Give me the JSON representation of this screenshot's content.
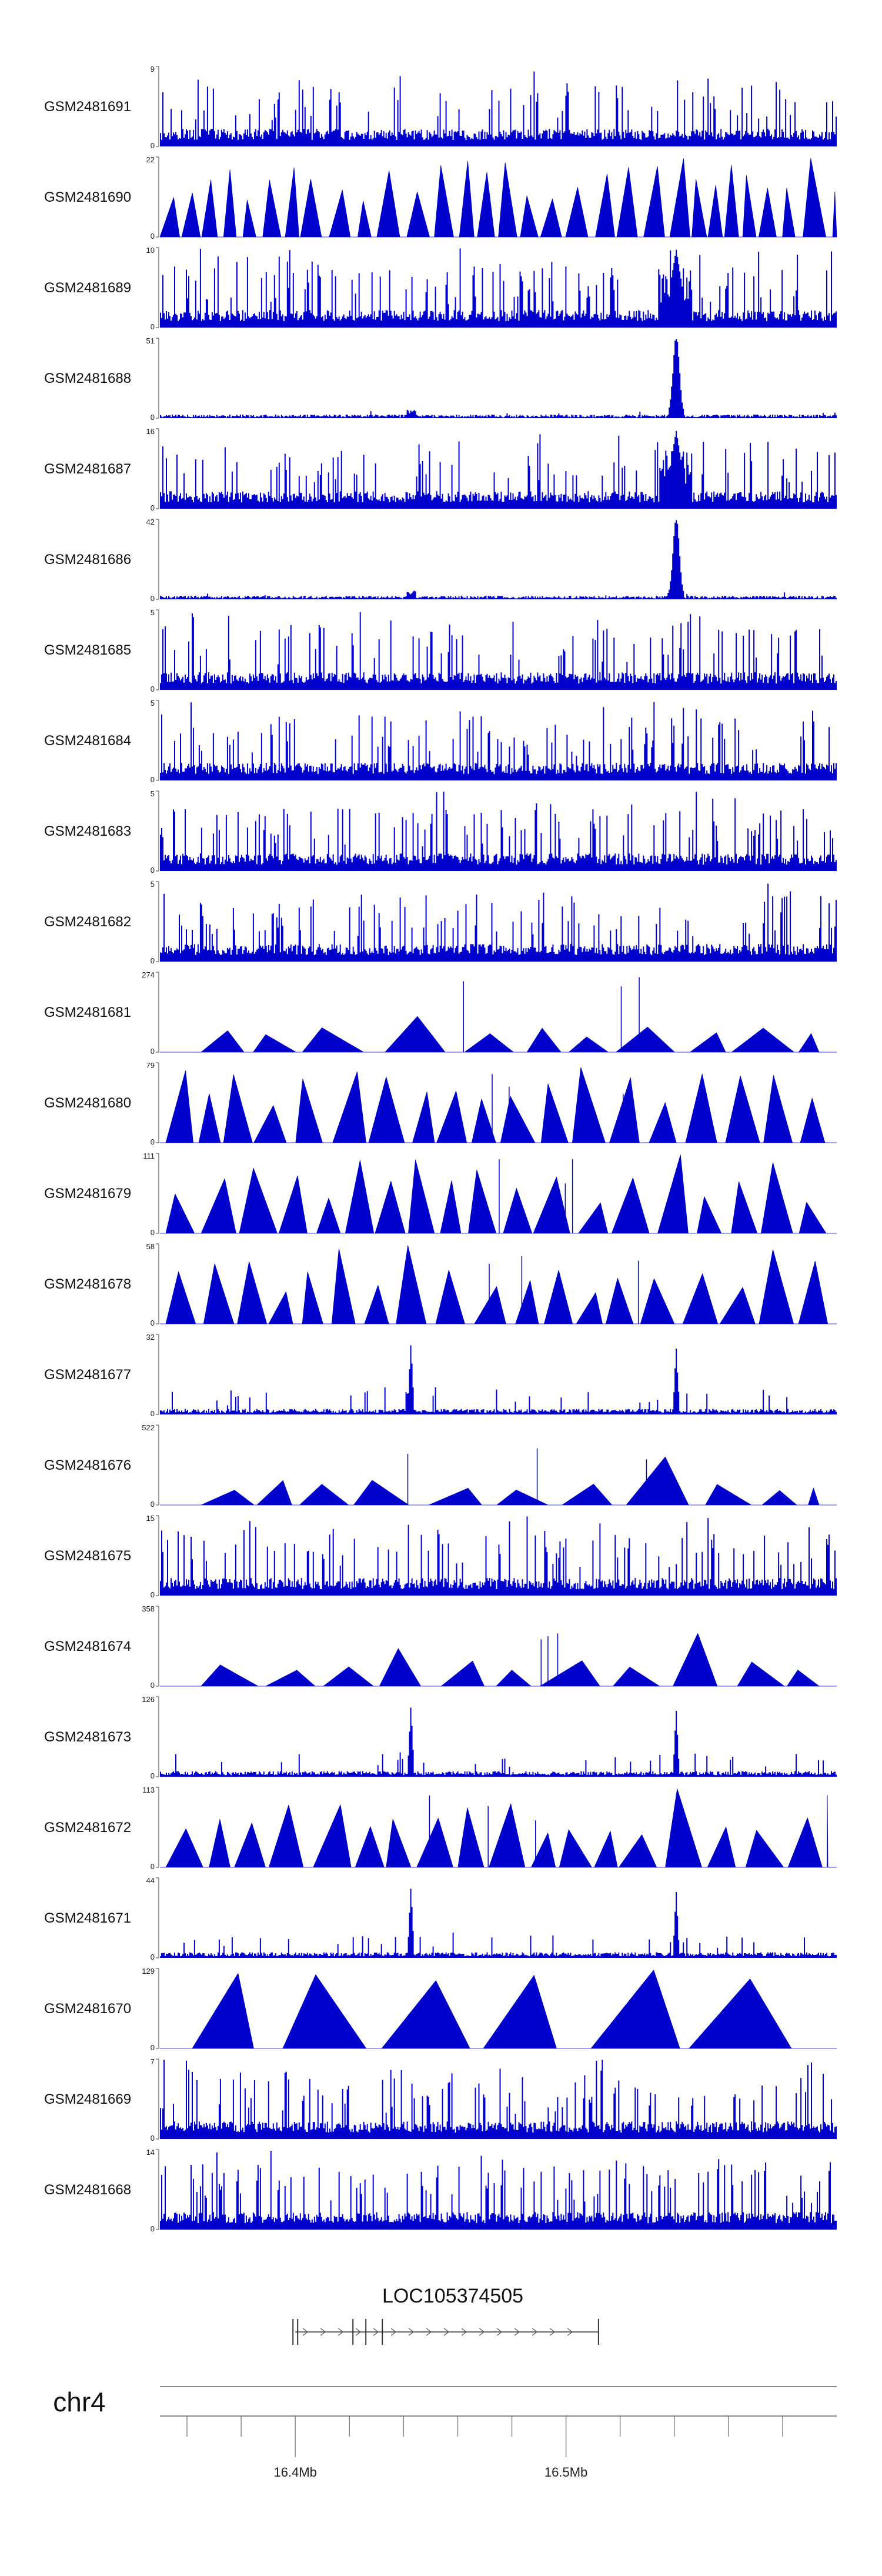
{
  "chart_data": {
    "type": "area",
    "title": "",
    "color": "#0000cc",
    "tracks": [
      {
        "name": "GSM2481691",
        "ymax": 9,
        "ymin": 0,
        "profile": "noise"
      },
      {
        "name": "GSM2481690",
        "ymax": 22,
        "ymin": 0,
        "profile": "tri_dense"
      },
      {
        "name": "GSM2481689",
        "ymax": 10,
        "ymin": 0,
        "profile": "noise_peak"
      },
      {
        "name": "GSM2481688",
        "ymax": 51,
        "ymin": 0,
        "profile": "flat_peak"
      },
      {
        "name": "GSM2481687",
        "ymax": 16,
        "ymin": 0,
        "profile": "noise_peak"
      },
      {
        "name": "GSM2481686",
        "ymax": 42,
        "ymin": 0,
        "profile": "flat_peak"
      },
      {
        "name": "GSM2481685",
        "ymax": 5,
        "ymin": 0,
        "profile": "noise"
      },
      {
        "name": "GSM2481684",
        "ymax": 5,
        "ymin": 0,
        "profile": "noise"
      },
      {
        "name": "GSM2481683",
        "ymax": 5,
        "ymin": 0,
        "profile": "noise"
      },
      {
        "name": "GSM2481682",
        "ymax": 5,
        "ymin": 0,
        "profile": "noise"
      },
      {
        "name": "GSM2481681",
        "ymax": 274,
        "ymin": 0,
        "profile": "tri_sparse"
      },
      {
        "name": "GSM2481680",
        "ymax": 79,
        "ymin": 0,
        "profile": "tri_mid"
      },
      {
        "name": "GSM2481679",
        "ymax": 111,
        "ymin": 0,
        "profile": "tri_mid"
      },
      {
        "name": "GSM2481678",
        "ymax": 58,
        "ymin": 0,
        "profile": "tri_mid"
      },
      {
        "name": "GSM2481677",
        "ymax": 32,
        "ymin": 0,
        "profile": "low_spikes"
      },
      {
        "name": "GSM2481676",
        "ymax": 522,
        "ymin": 0,
        "profile": "tri_sparse"
      },
      {
        "name": "GSM2481675",
        "ymax": 15,
        "ymin": 0,
        "profile": "noise"
      },
      {
        "name": "GSM2481674",
        "ymax": 358,
        "ymin": 0,
        "profile": "tri_sparse"
      },
      {
        "name": "GSM2481673",
        "ymax": 126,
        "ymin": 0,
        "profile": "low_spikes"
      },
      {
        "name": "GSM2481672",
        "ymax": 113,
        "ymin": 0,
        "profile": "tri_mid"
      },
      {
        "name": "GSM2481671",
        "ymax": 44,
        "ymin": 0,
        "profile": "low_spikes"
      },
      {
        "name": "GSM2481670",
        "ymax": 129,
        "ymin": 0,
        "profile": "tri_big"
      },
      {
        "name": "GSM2481669",
        "ymax": 7,
        "ymin": 0,
        "profile": "noise"
      },
      {
        "name": "GSM2481668",
        "ymax": 14,
        "ymin": 0,
        "profile": "noise"
      }
    ],
    "gene": {
      "name": "LOC105374505",
      "strand": "+",
      "start": 16.4,
      "end": 16.512
    },
    "chromosome": "chr4",
    "axis": {
      "range": [
        16.35,
        16.6
      ],
      "major_ticks": [
        {
          "value": 16.4,
          "label": "16.4Mb"
        },
        {
          "value": 16.5,
          "label": "16.5Mb"
        }
      ],
      "minor_ticks": [
        16.36,
        16.38,
        16.42,
        16.44,
        16.46,
        16.48,
        16.52,
        16.54,
        16.56,
        16.58
      ]
    }
  }
}
